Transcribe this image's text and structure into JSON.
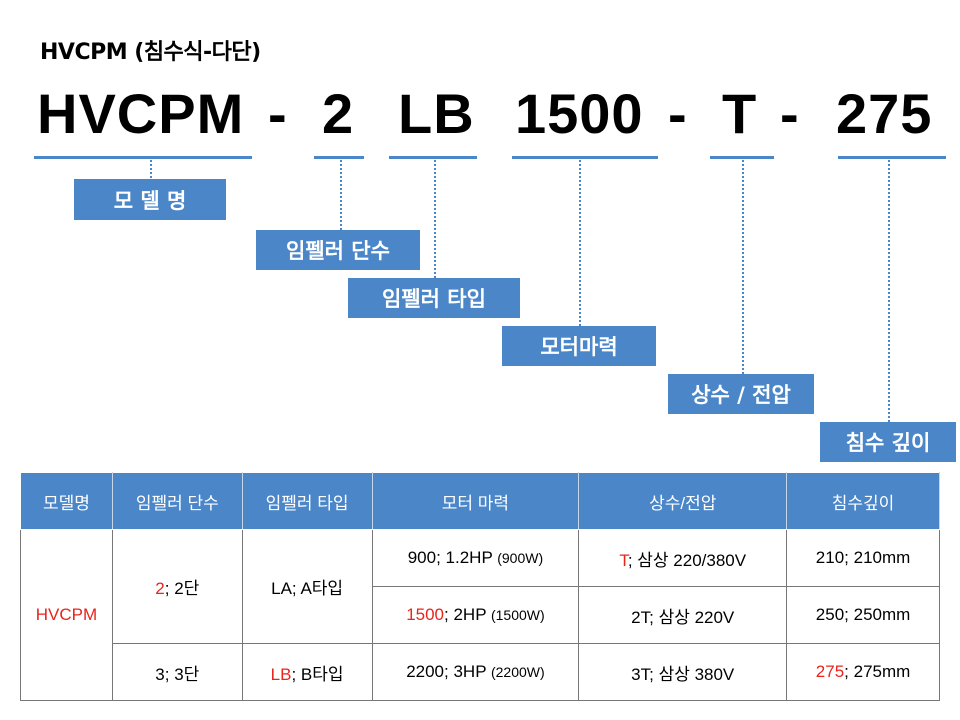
{
  "title": "HVCPM (침수식-다단)",
  "code": {
    "model": "HVCPM",
    "dash1": "-",
    "stages": "2",
    "impeller": "LB",
    "power": "1500",
    "dash2": "-",
    "phase": "T",
    "dash3": "-",
    "depth": "275"
  },
  "labels": {
    "model": "모 델 명",
    "stages": "임펠러 단수",
    "impeller": "임펠러 타입",
    "power": "모터마력",
    "phase": "상수 / 전압",
    "depth": "침수 깊이"
  },
  "table": {
    "headers": [
      "모델명",
      "임펠러 단수",
      "임펠러 타입",
      "모터 마력",
      "상수/전압",
      "침수깊이"
    ],
    "model": "HVCPM",
    "stages": [
      {
        "code": "2",
        "sep": "; ",
        "text": "2단"
      },
      {
        "code": "3",
        "sep": "; ",
        "text": "3단"
      }
    ],
    "impellers": [
      {
        "code": "LA",
        "sep": "; ",
        "text": "A타입"
      },
      {
        "code": "LB",
        "sep": "; ",
        "text": "B타입"
      }
    ],
    "powers": [
      {
        "code": "900",
        "sep": "; ",
        "text": "1.2HP",
        "note": "(900W)"
      },
      {
        "code": "1500",
        "sep": "; ",
        "text": "2HP",
        "note": "(1500W)"
      },
      {
        "code": "2200",
        "sep": "; ",
        "text": "3HP",
        "note": "(2200W)"
      }
    ],
    "phases": [
      {
        "code": "T",
        "sep": "; ",
        "text": "삼상 220/380V"
      },
      {
        "code": "2T",
        "sep": "; ",
        "text": "삼상 220V"
      },
      {
        "code": "3T",
        "sep": "; ",
        "text": "삼상 380V"
      }
    ],
    "depths": [
      {
        "code": "210",
        "sep": "; ",
        "text": "210mm"
      },
      {
        "code": "250",
        "sep": "; ",
        "text": "250mm"
      },
      {
        "code": "275",
        "sep": "; ",
        "text": "275mm"
      }
    ]
  },
  "colors": {
    "accent": "#4a86c8",
    "highlight": "#e8241b"
  }
}
